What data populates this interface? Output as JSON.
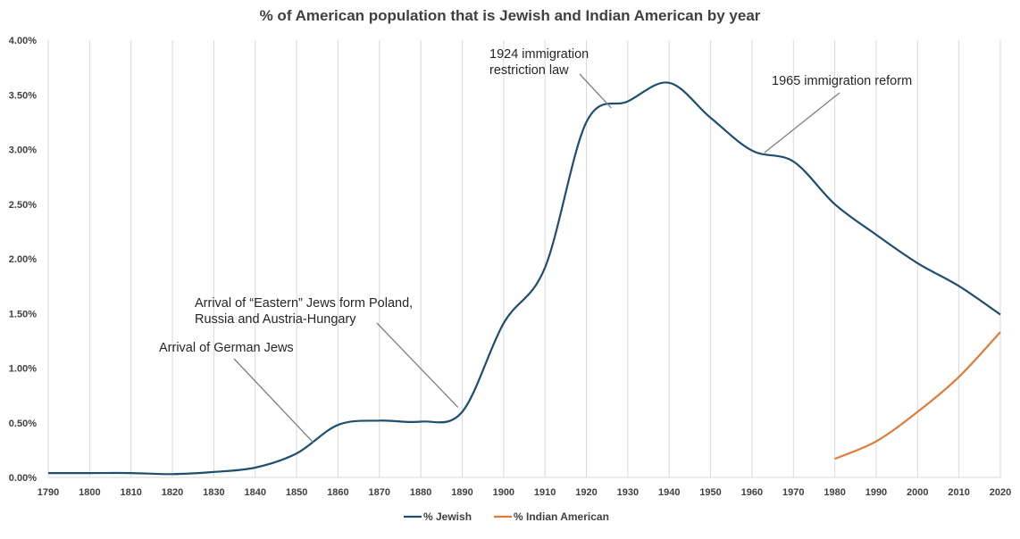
{
  "chart_data": {
    "type": "line",
    "title": "% of American population that is Jewish and Indian American by year",
    "xlabel": "",
    "ylabel": "",
    "x": [
      1790,
      1800,
      1810,
      1820,
      1830,
      1840,
      1850,
      1860,
      1870,
      1880,
      1890,
      1900,
      1910,
      1920,
      1930,
      1940,
      1950,
      1960,
      1970,
      1980,
      1990,
      2000,
      2010,
      2020
    ],
    "xlim": [
      1790,
      2020
    ],
    "ylim": [
      0,
      4.0
    ],
    "y_ticks": [
      "0.00%",
      "0.50%",
      "1.00%",
      "1.50%",
      "2.00%",
      "2.50%",
      "3.00%",
      "3.50%",
      "4.00%"
    ],
    "y_tick_values": [
      0,
      0.5,
      1.0,
      1.5,
      2.0,
      2.5,
      3.0,
      3.5,
      4.0
    ],
    "grid": "vertical",
    "legend_position": "bottom",
    "series": [
      {
        "name": "% Jewish",
        "color": "#1f4e6e",
        "x": [
          1790,
          1800,
          1810,
          1820,
          1830,
          1840,
          1850,
          1860,
          1870,
          1880,
          1890,
          1900,
          1910,
          1920,
          1930,
          1940,
          1950,
          1960,
          1970,
          1980,
          1990,
          2000,
          2010,
          2020
        ],
        "values": [
          0.04,
          0.04,
          0.04,
          0.03,
          0.05,
          0.09,
          0.22,
          0.48,
          0.52,
          0.51,
          0.6,
          1.41,
          1.92,
          3.25,
          3.44,
          3.61,
          3.29,
          2.99,
          2.89,
          2.5,
          2.22,
          1.96,
          1.75,
          1.49
        ]
      },
      {
        "name": "% Indian American",
        "color": "#e07b39",
        "x": [
          1980,
          1990,
          2000,
          2010,
          2020
        ],
        "values": [
          0.17,
          0.33,
          0.6,
          0.92,
          1.33
        ]
      }
    ],
    "annotations": [
      {
        "lines": [
          "Arrival of German Jews"
        ],
        "pointer_x": 1854,
        "pointer_y": 0.32
      },
      {
        "lines": [
          "Arrival of “Eastern” Jews form Poland,",
          "Russia and Austria-Hungary"
        ],
        "pointer_x": 1889,
        "pointer_y": 0.64
      },
      {
        "lines": [
          "1924 immigration",
          "restriction law"
        ],
        "pointer_x": 1926,
        "pointer_y": 3.38
      },
      {
        "lines": [
          "1965 immigration reform"
        ],
        "pointer_x": 1963,
        "pointer_y": 2.97
      }
    ]
  }
}
